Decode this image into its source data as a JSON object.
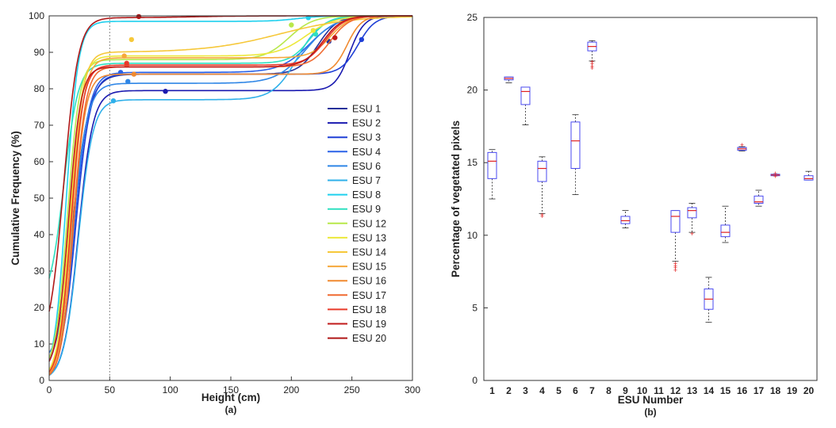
{
  "chart_data": [
    {
      "type": "line",
      "panel_label": "(a)",
      "xlabel": "Height (cm)",
      "ylabel": "Cumulative Frequency (%)",
      "xlim": [
        0,
        300
      ],
      "ylim": [
        0,
        100
      ],
      "xticks": [
        "0",
        "50",
        "100",
        "150",
        "200",
        "250",
        "300"
      ],
      "yticks": [
        "0",
        "10",
        "20",
        "30",
        "40",
        "50",
        "60",
        "70",
        "80",
        "90",
        "100"
      ],
      "reference_line_x": 50,
      "legend_position": "bottom-right",
      "series": [
        {
          "name": "ESU 1",
          "color": "#26309a",
          "y0": 0,
          "rise": 19,
          "width": 7,
          "plateau": 84,
          "tail_mid": 222,
          "tail_w": 8,
          "marker": [
            231,
            93
          ]
        },
        {
          "name": "ESU 2",
          "color": "#1a1ab0",
          "y0": 0,
          "rise": 24,
          "width": 6,
          "plateau": 79.5,
          "tail_mid": 248,
          "tail_w": 6,
          "marker": [
            96,
            79.3
          ]
        },
        {
          "name": "ESU 3",
          "color": "#1f3fd6",
          "y0": 1,
          "rise": 22,
          "width": 6,
          "plateau": 84,
          "tail_mid": 255,
          "tail_w": 7,
          "marker": [
            258,
            93.5
          ]
        },
        {
          "name": "ESU 4",
          "color": "#2a62e8",
          "y0": 0,
          "rise": 21,
          "width": 6,
          "plateau": 84.5,
          "tail_mid": 215,
          "tail_w": 12,
          "marker": [
            59,
            84.5
          ]
        },
        {
          "name": "ESU 6",
          "color": "#2f86e6",
          "y0": 5,
          "rise": 20,
          "width": 6,
          "plateau": 81.5,
          "tail_mid": 212,
          "tail_w": 12,
          "marker": [
            65,
            82
          ]
        },
        {
          "name": "ESU 7",
          "color": "#2fb0ea",
          "y0": 0,
          "rise": 24,
          "width": 6,
          "plateau": 77,
          "tail_mid": 205,
          "tail_w": 10,
          "marker": [
            53,
            76.7
          ]
        },
        {
          "name": "ESU 8",
          "color": "#1fd0ee",
          "y0": 0,
          "rise": 14,
          "width": 5,
          "plateau": 98.5,
          "tail_mid": 205,
          "tail_w": 10,
          "marker": [
            214,
            99.5
          ]
        },
        {
          "name": "ESU 9",
          "color": "#2fe0c0",
          "y0": 20,
          "rise": 12,
          "width": 6,
          "plateau": 87,
          "tail_mid": 215,
          "tail_w": 8,
          "marker": [
            220,
            95
          ]
        },
        {
          "name": "ESU 12",
          "color": "#b8e84a",
          "y0": 2,
          "rise": 15,
          "width": 5,
          "plateau": 88,
          "tail_mid": 198,
          "tail_w": 10,
          "marker": [
            200,
            97.5
          ]
        },
        {
          "name": "ESU 13",
          "color": "#ece83a",
          "y0": 0,
          "rise": 17,
          "width": 5,
          "plateau": 89,
          "tail_mid": 212,
          "tail_w": 12,
          "marker": [
            218,
            96
          ]
        },
        {
          "name": "ESU 14",
          "color": "#f6c83a",
          "y0": 0,
          "rise": 18,
          "width": 5,
          "plateau": 90,
          "tail_mid": 190,
          "tail_w": 30,
          "marker": [
            68,
            93.5
          ]
        },
        {
          "name": "ESU 15",
          "color": "#f6a83a",
          "y0": 0,
          "rise": 19,
          "width": 5,
          "plateau": 88.5,
          "tail_mid": 232,
          "tail_w": 8,
          "marker": [
            62,
            89
          ]
        },
        {
          "name": "ESU 16",
          "color": "#f08a30",
          "y0": 0,
          "rise": 20,
          "width": 5,
          "plateau": 84,
          "tail_mid": 246,
          "tail_w": 6,
          "marker": [
            70,
            84
          ]
        },
        {
          "name": "ESU 17",
          "color": "#f06a30",
          "y0": 0,
          "rise": 20,
          "width": 5,
          "plateau": 86,
          "tail_mid": 232,
          "tail_w": 8,
          "marker": [
            64,
            86.5
          ]
        },
        {
          "name": "ESU 18",
          "color": "#e83a2a",
          "y0": 0,
          "rise": 18,
          "width": 5,
          "plateau": 86.5,
          "tail_mid": 228,
          "tail_w": 8,
          "marker": [
            64,
            87
          ]
        },
        {
          "name": "ESU 19",
          "color": "#c01a1a",
          "y0": 2,
          "rise": 16,
          "width": 5,
          "plateau": 86,
          "tail_mid": 226,
          "tail_w": 8,
          "marker": [
            236,
            94
          ]
        },
        {
          "name": "ESU 20",
          "color": "#b01818",
          "y0": 8,
          "rise": 12,
          "width": 6,
          "plateau": 99.5,
          "tail_mid": 120,
          "tail_w": 20,
          "marker": [
            74,
            99.8
          ]
        }
      ]
    },
    {
      "type": "box",
      "panel_label": "(b)",
      "xlabel": "ESU Number",
      "ylabel": "Percentage of vegetated pixels",
      "ylim": [
        0,
        25
      ],
      "yticks": [
        "0",
        "5",
        "10",
        "15",
        "20",
        "25"
      ],
      "categories": [
        "1",
        "2",
        "3",
        "4",
        "5",
        "6",
        "7",
        "8",
        "9",
        "10",
        "11",
        "12",
        "13",
        "14",
        "15",
        "16",
        "17",
        "18",
        "19",
        "20"
      ],
      "box_color": "#4a4af0",
      "median_color": "#e02020",
      "boxes": [
        {
          "category": "1",
          "min": 12.5,
          "q1": 13.9,
          "median": 15.1,
          "q3": 15.7,
          "max": 15.9,
          "outliers": []
        },
        {
          "category": "2",
          "min": 20.5,
          "q1": 20.7,
          "median": 20.8,
          "q3": 20.9,
          "max": 20.9,
          "outliers": []
        },
        {
          "category": "3",
          "min": 17.6,
          "q1": 19.0,
          "median": 19.9,
          "q3": 20.2,
          "max": 20.2,
          "outliers": []
        },
        {
          "category": "4",
          "min": 11.5,
          "q1": 13.7,
          "median": 14.6,
          "q3": 15.1,
          "max": 15.4,
          "outliers": [
            11.3,
            11.4
          ]
        },
        {
          "category": "6",
          "min": 12.8,
          "q1": 14.6,
          "median": 16.5,
          "q3": 17.8,
          "max": 18.3,
          "outliers": []
        },
        {
          "category": "7",
          "min": 22.0,
          "q1": 22.7,
          "median": 23.0,
          "q3": 23.3,
          "max": 23.4,
          "outliers": [
            21.5,
            21.65,
            21.8,
            21.95
          ]
        },
        {
          "category": "9",
          "min": 10.5,
          "q1": 10.8,
          "median": 11.0,
          "q3": 11.3,
          "max": 11.7,
          "outliers": []
        },
        {
          "category": "12",
          "min": 8.2,
          "q1": 10.2,
          "median": 11.3,
          "q3": 11.7,
          "max": 11.7,
          "outliers": [
            7.6,
            7.75,
            7.9,
            8.05
          ]
        },
        {
          "category": "13",
          "min": 10.2,
          "q1": 11.2,
          "median": 11.7,
          "q3": 11.9,
          "max": 12.2,
          "outliers": [
            10.1
          ]
        },
        {
          "category": "14",
          "min": 4.0,
          "q1": 4.9,
          "median": 5.6,
          "q3": 6.3,
          "max": 7.1,
          "outliers": []
        },
        {
          "category": "15",
          "min": 9.5,
          "q1": 9.9,
          "median": 10.2,
          "q3": 10.7,
          "max": 12.0,
          "outliers": []
        },
        {
          "category": "16",
          "min": 15.8,
          "q1": 15.85,
          "median": 15.95,
          "q3": 16.05,
          "max": 16.1,
          "outliers": [
            16.2
          ]
        },
        {
          "category": "17",
          "min": 12.0,
          "q1": 12.2,
          "median": 12.3,
          "q3": 12.7,
          "max": 13.1,
          "outliers": []
        },
        {
          "category": "18",
          "min": 14.1,
          "q1": 14.1,
          "median": 14.15,
          "q3": 14.2,
          "max": 14.2,
          "outliers": [
            14.05,
            14.25
          ]
        },
        {
          "category": "20",
          "min": 13.8,
          "q1": 13.8,
          "median": 13.9,
          "q3": 14.1,
          "max": 14.4,
          "outliers": []
        }
      ]
    }
  ]
}
